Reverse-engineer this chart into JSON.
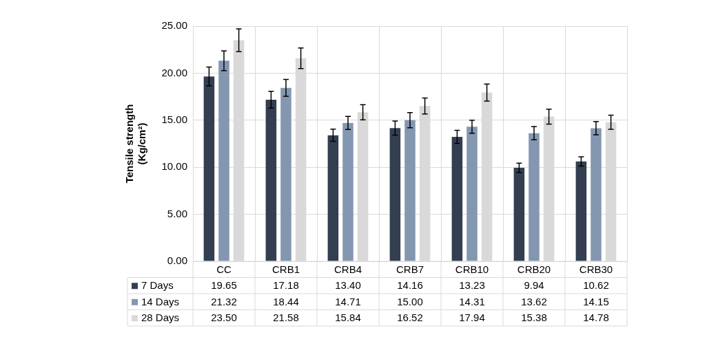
{
  "chart_data": {
    "type": "bar",
    "ylabel": "Tensile strength\n(Kg/cm²)",
    "categories": [
      "CC",
      "CRB1",
      "CRB4",
      "CRB7",
      "CRB10",
      "CRB20",
      "CRB30"
    ],
    "series": [
      {
        "name": "7 Days",
        "color": "#333f50",
        "values": [
          19.65,
          17.18,
          13.4,
          14.16,
          13.23,
          9.94,
          10.62
        ],
        "errors": [
          1.0,
          0.9,
          0.65,
          0.75,
          0.7,
          0.5,
          0.5
        ],
        "value_labels": [
          "19.65",
          "17.18",
          "13.40",
          "14.16",
          "13.23",
          "9.94",
          "10.62"
        ]
      },
      {
        "name": "14 Days",
        "color": "#8497b0",
        "values": [
          21.32,
          18.44,
          14.71,
          15.0,
          14.31,
          13.62,
          14.15
        ],
        "errors": [
          1.05,
          0.9,
          0.7,
          0.8,
          0.7,
          0.7,
          0.7
        ],
        "value_labels": [
          "21.32",
          "18.44",
          "14.71",
          "15.00",
          "14.31",
          "13.62",
          "14.15"
        ]
      },
      {
        "name": "28 Days",
        "color": "#d9d9d9",
        "values": [
          23.5,
          21.58,
          15.84,
          16.52,
          17.94,
          15.38,
          14.78
        ],
        "errors": [
          1.2,
          1.1,
          0.8,
          0.85,
          0.9,
          0.8,
          0.75
        ],
        "value_labels": [
          "23.50",
          "21.58",
          "15.84",
          "16.52",
          "17.94",
          "15.38",
          "14.78"
        ]
      }
    ],
    "ylim": [
      0,
      25
    ],
    "yticks": [
      {
        "value": 0,
        "label": "0.00"
      },
      {
        "value": 5,
        "label": "5.00"
      },
      {
        "value": 10,
        "label": "10.00"
      },
      {
        "value": 15,
        "label": "15.00"
      },
      {
        "value": 20,
        "label": "20.00"
      },
      {
        "value": 25,
        "label": "25.00"
      }
    ],
    "grid": true,
    "legend": "bottom"
  }
}
